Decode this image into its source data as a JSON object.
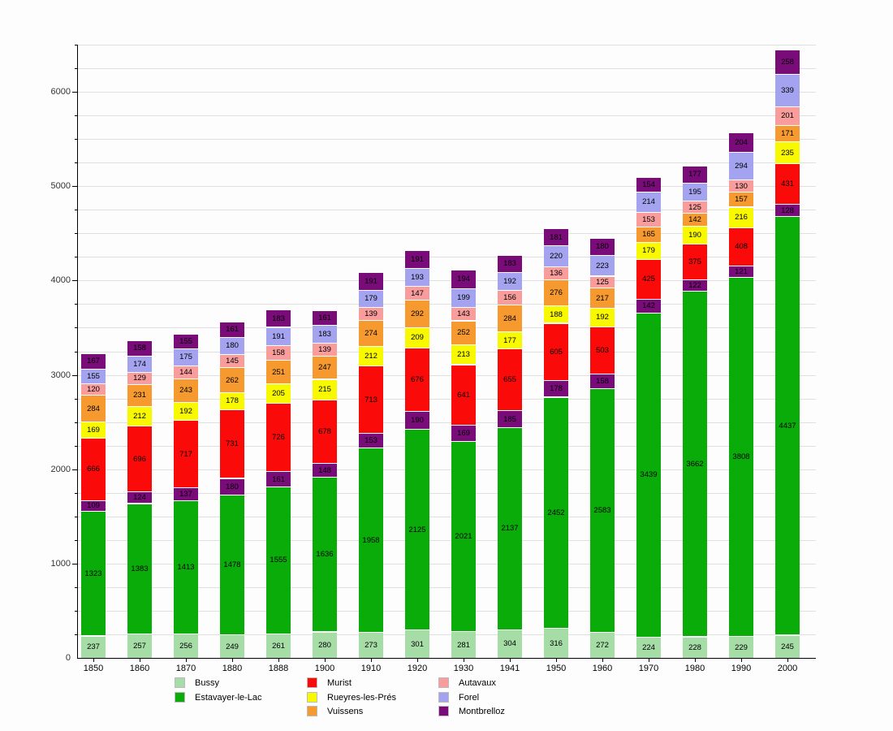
{
  "chart_data": {
    "type": "bar",
    "stacked": true,
    "title": "",
    "xlabel": "",
    "ylabel": "",
    "grid": true,
    "legend_position": "bottom",
    "ylim": [
      0,
      6500
    ],
    "y_major_ticks": [
      "0",
      "1000",
      "2000",
      "3000",
      "4000",
      "5000",
      "6000"
    ],
    "y_minor_step": 250,
    "categories": [
      "1850",
      "1860",
      "1870",
      "1880",
      "1888",
      "1900",
      "1910",
      "1920",
      "1930",
      "1941",
      "1950",
      "1960",
      "1970",
      "1980",
      "1990",
      "2000"
    ],
    "series": [
      {
        "name": "Bussy",
        "color": "#a6dca6",
        "values": [
          237,
          257,
          256,
          249,
          261,
          280,
          273,
          301,
          281,
          304,
          316,
          272,
          224,
          228,
          229,
          245
        ]
      },
      {
        "name": "Estavayer-le-Lac",
        "color": "#09ac09",
        "values": [
          1323,
          1383,
          1413,
          1478,
          1555,
          1636,
          1958,
          2125,
          2021,
          2137,
          2452,
          2583,
          3439,
          3662,
          3808,
          4437
        ]
      },
      {
        "name": "",
        "color": "#7a0c7a",
        "values": [
          109,
          124,
          137,
          180,
          161,
          148,
          153,
          190,
          169,
          185,
          178,
          158,
          142,
          122,
          121,
          128
        ]
      },
      {
        "name": "Murist",
        "color": "#fb0a0a",
        "values": [
          666,
          696,
          717,
          731,
          726,
          678,
          713,
          676,
          641,
          655,
          605,
          503,
          425,
          375,
          408,
          431
        ]
      },
      {
        "name": "Rueyres-les-Prés",
        "color": "#f8f800",
        "values": [
          169,
          212,
          192,
          178,
          205,
          215,
          212,
          209,
          213,
          177,
          188,
          192,
          179,
          190,
          216,
          235
        ]
      },
      {
        "name": "Vuissens",
        "color": "#f69a30",
        "values": [
          284,
          231,
          243,
          262,
          251,
          247,
          274,
          292,
          252,
          284,
          276,
          217,
          165,
          142,
          157,
          171
        ]
      },
      {
        "name": "Autavaux",
        "color": "#f89c9c",
        "values": [
          120,
          129,
          144,
          145,
          158,
          139,
          139,
          147,
          143,
          156,
          136,
          125,
          153,
          125,
          130,
          201
        ]
      },
      {
        "name": "Forel",
        "color": "#a3a3ef",
        "values": [
          155,
          174,
          175,
          180,
          191,
          183,
          179,
          193,
          199,
          192,
          220,
          223,
          214,
          195,
          294,
          339
        ]
      },
      {
        "name": "Montbrelloz",
        "color": "#7a0c7a",
        "values": [
          167,
          158,
          155,
          161,
          183,
          161,
          191,
          191,
          194,
          183,
          181,
          180,
          154,
          177,
          204,
          258
        ]
      }
    ],
    "legend_columns": [
      [
        {
          "label": "Bussy",
          "color": "#a6dca6"
        },
        {
          "label": "Estavayer-le-Lac",
          "color": "#09ac09"
        }
      ],
      [
        {
          "label": "Murist",
          "color": "#fb0a0a"
        },
        {
          "label": "Rueyres-les-Prés",
          "color": "#f8f800"
        },
        {
          "label": "Vuissens",
          "color": "#f69a30"
        }
      ],
      [
        {
          "label": "Autavaux",
          "color": "#f89c9c"
        },
        {
          "label": "Forel",
          "color": "#a3a3ef"
        },
        {
          "label": "Montbrelloz",
          "color": "#7a0c7a"
        }
      ]
    ]
  }
}
